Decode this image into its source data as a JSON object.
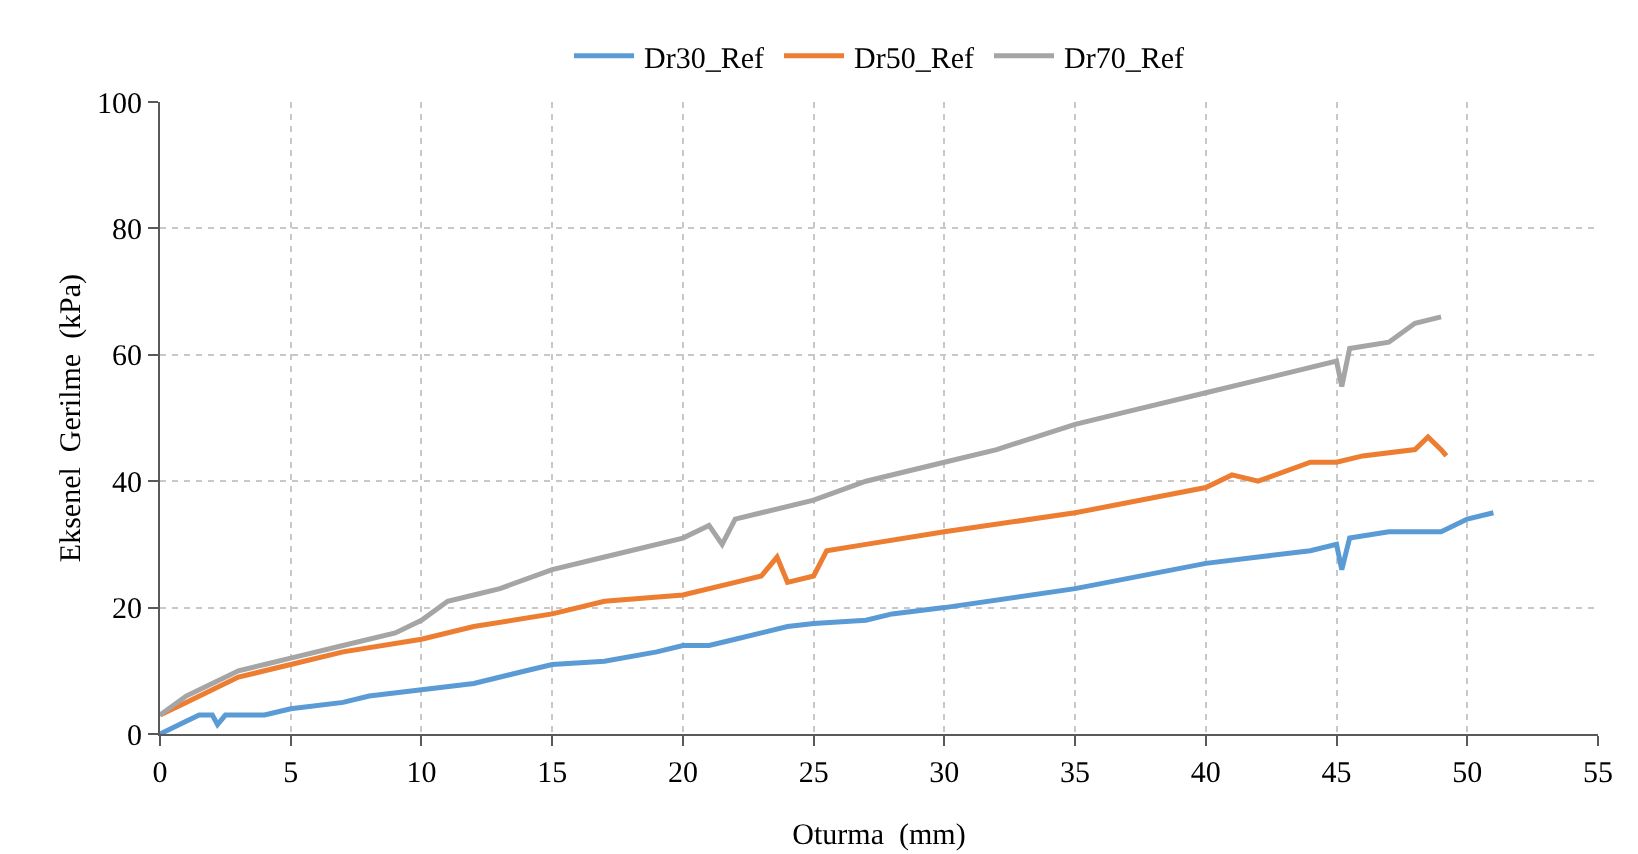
{
  "chart_data": {
    "type": "line",
    "xlabel": "Oturma  (mm)",
    "ylabel": "Eksenel  Gerilme  (kPa)",
    "xlim": [
      0,
      55
    ],
    "xticks": [
      0,
      5,
      10,
      15,
      20,
      25,
      30,
      35,
      40,
      45,
      50,
      55
    ],
    "ylim": [
      0,
      100
    ],
    "yticks": [
      0,
      20,
      40,
      60,
      80,
      100
    ],
    "grid": true,
    "legend": "top",
    "marker": "none",
    "line_style": "solid",
    "series": [
      {
        "name": "Dr30_Ref",
        "color": "#5b9bd5",
        "x": [
          0,
          1,
          1.5,
          2,
          2.2,
          2.5,
          4,
          5,
          7,
          8,
          10,
          12,
          14,
          15,
          17,
          19,
          20,
          21,
          22,
          24,
          25,
          27,
          28,
          30,
          35,
          40,
          42,
          44,
          45,
          45.2,
          45.5,
          47,
          49,
          50,
          51
        ],
        "values": [
          0,
          2,
          3,
          3,
          1.5,
          3,
          3,
          4,
          5,
          6,
          7,
          8,
          10,
          11,
          11.5,
          13,
          14,
          14,
          15,
          17,
          17.5,
          18,
          19,
          20,
          23,
          27,
          28,
          29,
          30,
          26,
          31,
          32,
          32,
          34,
          35
        ]
      },
      {
        "name": "Dr50_Ref",
        "color": "#ed7d31",
        "x": [
          0,
          1,
          2,
          3,
          4,
          5,
          7,
          10,
          12,
          15,
          17,
          20,
          22,
          23,
          23.6,
          24,
          25,
          25.5,
          27,
          30,
          35,
          40,
          41,
          42,
          44,
          45,
          46,
          48,
          48.5,
          49,
          49.2
        ],
        "values": [
          3,
          5,
          7,
          9,
          10,
          11,
          13,
          15,
          17,
          19,
          21,
          22,
          24,
          25,
          28,
          24,
          25,
          29,
          30,
          32,
          35,
          39,
          41,
          40,
          43,
          43,
          44,
          45,
          47,
          45,
          44
        ]
      },
      {
        "name": "Dr70_Ref",
        "color": "#a5a5a5",
        "x": [
          0,
          1,
          2,
          3,
          4,
          5,
          7,
          9,
          10,
          11,
          12,
          13,
          15,
          17,
          20,
          21,
          21.5,
          22,
          23,
          25,
          27,
          30,
          32,
          35,
          37,
          40,
          42,
          45,
          45.2,
          45.5,
          47,
          48,
          49
        ],
        "values": [
          3,
          6,
          8,
          10,
          11,
          12,
          14,
          16,
          18,
          21,
          22,
          23,
          26,
          28,
          31,
          33,
          30,
          34,
          35,
          37,
          40,
          43,
          45,
          49,
          51,
          54,
          56,
          59,
          55,
          61,
          62,
          65,
          66
        ]
      }
    ]
  }
}
